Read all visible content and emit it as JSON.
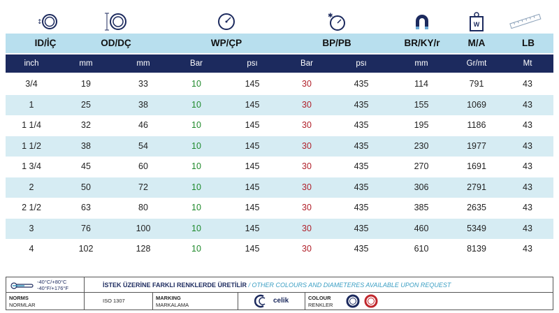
{
  "headers": {
    "id": "ID/İÇ",
    "od": "OD/DÇ",
    "wp": "WP/ÇP",
    "bp": "BP/PB",
    "br": "BR/KY/r",
    "ma": "M/A",
    "lb": "LB"
  },
  "icons": {
    "id": "inner-diameter-icon",
    "od": "outer-diameter-icon",
    "wp": "pressure-gauge-icon",
    "bp": "burst-gauge-icon",
    "br": "bend-radius-magnet-icon",
    "ma": "weight-icon",
    "lb": "length-ruler-icon",
    "weight_letter": "W"
  },
  "units": [
    "inch",
    "mm",
    "mm",
    "Bar",
    "psı",
    "Bar",
    "psı",
    "mm",
    "Gr/mt",
    "Mt"
  ],
  "rows": [
    [
      "3/4",
      "19",
      "33",
      "10",
      "145",
      "30",
      "435",
      "114",
      "791",
      "43"
    ],
    [
      "1",
      "25",
      "38",
      "10",
      "145",
      "30",
      "435",
      "155",
      "1069",
      "43"
    ],
    [
      "1 1/4",
      "32",
      "46",
      "10",
      "145",
      "30",
      "435",
      "195",
      "1186",
      "43"
    ],
    [
      "1 1/2",
      "38",
      "54",
      "10",
      "145",
      "30",
      "435",
      "230",
      "1977",
      "43"
    ],
    [
      "1 3/4",
      "45",
      "60",
      "10",
      "145",
      "30",
      "435",
      "270",
      "1691",
      "43"
    ],
    [
      "2",
      "50",
      "72",
      "10",
      "145",
      "30",
      "435",
      "306",
      "2791",
      "43"
    ],
    [
      "2 1/2",
      "63",
      "80",
      "10",
      "145",
      "30",
      "435",
      "385",
      "2635",
      "43"
    ],
    [
      "3",
      "76",
      "100",
      "10",
      "145",
      "30",
      "435",
      "460",
      "5349",
      "43"
    ],
    [
      "4",
      "102",
      "128",
      "10",
      "145",
      "30",
      "435",
      "610",
      "8139",
      "43"
    ]
  ],
  "footer": {
    "temp_c": "-40°C/+80°C",
    "temp_f": "-40°F/+176°F",
    "note_tr": "İSTEK ÜZERİNE FARKLI RENKLERDE ÜRETİLİR",
    "note_sep": " / ",
    "note_en": "OTHER COLOURS AND DIAMETERES AVAILABLE UPON REQUEST",
    "norms_title": "NORMS",
    "norms_sub": "NORMLAR",
    "norms_value": "ISO 1307",
    "marking_title": "MARKING",
    "marking_sub": "MARKALAMA",
    "brand": "celik",
    "colour_title": "COLOUR",
    "colour_sub": "RENKLER",
    "colours": [
      "#1c2a5e",
      "#c0272d"
    ]
  }
}
